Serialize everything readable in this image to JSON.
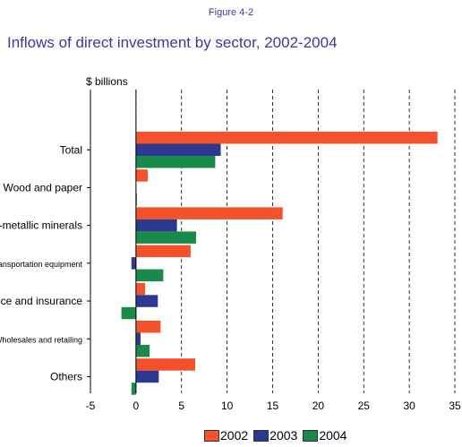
{
  "figure_label": "Figure 4-2",
  "chart_data": {
    "type": "bar",
    "orientation": "horizontal",
    "title": "Inflows of direct investment by sector, 2002-2004",
    "unit_label": "$ billions",
    "xlim": [
      -5,
      35
    ],
    "xticks": [
      "-5",
      "0",
      "5",
      "10",
      "15",
      "20",
      "25",
      "30",
      "35"
    ],
    "xtick_values": [
      -5,
      0,
      5,
      10,
      15,
      20,
      25,
      30,
      35
    ],
    "categories": [
      "Total",
      "Wood and paper",
      "Non-metallic minerals",
      "Transportation equipment",
      "Finance and insurance",
      "Wholesales and retailing",
      "Others"
    ],
    "series": [
      {
        "name": "2002",
        "color": "#f4512c",
        "values": [
          33.1,
          1.3,
          16.1,
          6.0,
          1.0,
          2.7,
          6.5
        ]
      },
      {
        "name": "2003",
        "color": "#2b3990",
        "values": [
          9.3,
          0.0,
          4.5,
          -0.5,
          2.4,
          0.5,
          2.5
        ]
      },
      {
        "name": "2004",
        "color": "#1a8a4a",
        "values": [
          8.7,
          0.1,
          6.6,
          3.0,
          -1.6,
          1.5,
          -0.5
        ]
      }
    ],
    "grid": "vertical dashed",
    "legend_position": "bottom"
  }
}
